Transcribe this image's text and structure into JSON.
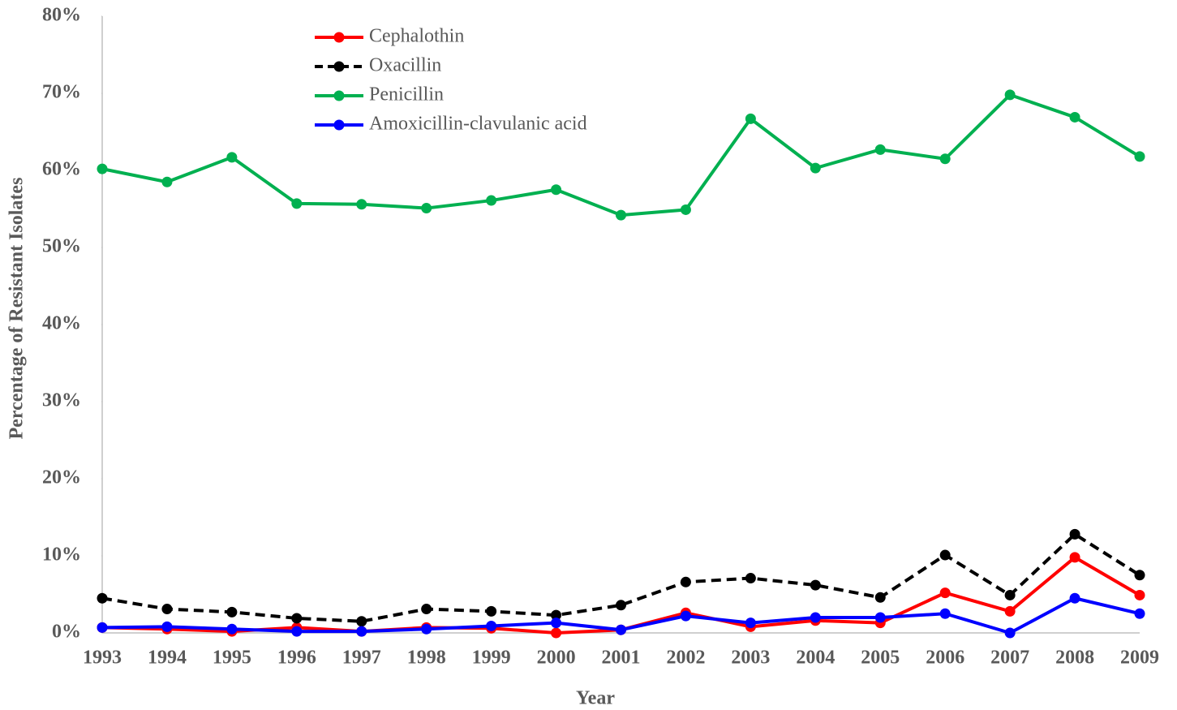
{
  "chart_data": {
    "type": "line",
    "xlabel": "Year",
    "ylabel": "Percentage of Resistant Isolates",
    "categories": [
      "1993",
      "1994",
      "1995",
      "1996",
      "1997",
      "1998",
      "1999",
      "2000",
      "2001",
      "2002",
      "2003",
      "2004",
      "2005",
      "2006",
      "2007",
      "2008",
      "2009"
    ],
    "series": [
      {
        "name": "Cephalothin",
        "color": "#ff0000",
        "dash": false,
        "values": [
          0.7,
          0.5,
          0.2,
          0.7,
          0.2,
          0.7,
          0.6,
          0,
          0.4,
          2.6,
          0.8,
          1.6,
          1.3,
          5.2,
          2.8,
          9.8,
          4.9
        ]
      },
      {
        "name": "Oxacillin",
        "color": "#000000",
        "dash": true,
        "values": [
          4.5,
          3.1,
          2.7,
          1.9,
          1.5,
          3.1,
          2.8,
          2.3,
          3.6,
          6.6,
          7.1,
          6.2,
          4.6,
          10.1,
          4.9,
          12.8,
          7.5
        ]
      },
      {
        "name": "Penicillin",
        "color": "#00b050",
        "dash": false,
        "values": [
          60.2,
          58.5,
          61.7,
          55.7,
          55.6,
          55.1,
          56.1,
          57.5,
          54.2,
          54.9,
          66.7,
          60.3,
          62.7,
          61.5,
          69.8,
          66.9,
          61.8
        ]
      },
      {
        "name": "Amoxicillin-clavulanic acid",
        "color": "#0000ff",
        "dash": false,
        "values": [
          0.7,
          0.8,
          0.5,
          0.2,
          0.2,
          0.5,
          0.9,
          1.3,
          0.4,
          2.2,
          1.3,
          2.0,
          2.0,
          2.5,
          0,
          4.5,
          2.5
        ]
      }
    ],
    "ylim": [
      0,
      80
    ],
    "yticks": [
      {
        "value": 0,
        "label": "0%"
      },
      {
        "value": 10,
        "label": "10%"
      },
      {
        "value": 20,
        "label": "20%"
      },
      {
        "value": 30,
        "label": "30%"
      },
      {
        "value": 40,
        "label": "40%"
      },
      {
        "value": 50,
        "label": "50%"
      },
      {
        "value": 60,
        "label": "60%"
      },
      {
        "value": 70,
        "label": "70%"
      },
      {
        "value": 80,
        "label": "80%"
      }
    ],
    "grid": false,
    "legend": "upper left"
  }
}
